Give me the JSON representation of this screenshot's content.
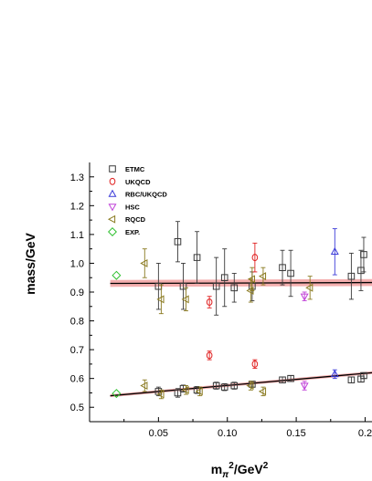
{
  "chart_data": {
    "type": "scatter",
    "title": "",
    "xlabel": "m_π²/GeV²",
    "ylabel": "mass/GeV",
    "xlim": [
      0.0,
      0.205
    ],
    "ylim": [
      0.45,
      1.35
    ],
    "x_ticks": [
      0.05,
      0.1,
      0.15,
      0.2
    ],
    "x_tick_labels": [
      "0.05",
      "0.10",
      "0.15",
      "0.2"
    ],
    "y_ticks": [
      0.5,
      0.6,
      0.7,
      0.8,
      0.9,
      1.0,
      1.1,
      1.2,
      1.3
    ],
    "y_tick_labels": [
      "0.5",
      "0.6",
      "0.7",
      "0.8",
      "0.9",
      "1.0",
      "1.1",
      "1.2",
      "1.3"
    ],
    "grid": false,
    "legend_position": "top-left",
    "series": [
      {
        "name": "ETMC",
        "marker": "square",
        "color": "#3a3a3a",
        "points": [
          {
            "x": 0.05,
            "y": 0.92,
            "err": 0.08
          },
          {
            "x": 0.064,
            "y": 1.075,
            "err": 0.07
          },
          {
            "x": 0.068,
            "y": 0.92,
            "err": 0.08
          },
          {
            "x": 0.078,
            "y": 1.02,
            "err": 0.09
          },
          {
            "x": 0.092,
            "y": 0.92,
            "err": 0.1
          },
          {
            "x": 0.098,
            "y": 0.95,
            "err": 0.1
          },
          {
            "x": 0.105,
            "y": 0.915,
            "err": 0.05
          },
          {
            "x": 0.118,
            "y": 0.92,
            "err": 0.05
          },
          {
            "x": 0.14,
            "y": 0.985,
            "err": 0.06
          },
          {
            "x": 0.146,
            "y": 0.965,
            "err": 0.08
          },
          {
            "x": 0.19,
            "y": 0.955,
            "err": 0.08
          },
          {
            "x": 0.197,
            "y": 0.975,
            "err": 0.07
          },
          {
            "x": 0.199,
            "y": 1.03,
            "err": 0.06
          },
          {
            "x": 0.05,
            "y": 0.555,
            "err": 0.015
          },
          {
            "x": 0.064,
            "y": 0.55,
            "err": 0.015
          },
          {
            "x": 0.068,
            "y": 0.565,
            "err": 0.012
          },
          {
            "x": 0.078,
            "y": 0.56,
            "err": 0.012
          },
          {
            "x": 0.092,
            "y": 0.575,
            "err": 0.012
          },
          {
            "x": 0.098,
            "y": 0.57,
            "err": 0.012
          },
          {
            "x": 0.105,
            "y": 0.575,
            "err": 0.012
          },
          {
            "x": 0.118,
            "y": 0.58,
            "err": 0.01
          },
          {
            "x": 0.14,
            "y": 0.595,
            "err": 0.01
          },
          {
            "x": 0.146,
            "y": 0.6,
            "err": 0.01
          },
          {
            "x": 0.19,
            "y": 0.595,
            "err": 0.01
          },
          {
            "x": 0.197,
            "y": 0.598,
            "err": 0.01
          },
          {
            "x": 0.199,
            "y": 0.61,
            "err": 0.01
          }
        ]
      },
      {
        "name": "UKQCD",
        "marker": "circle",
        "color": "#e02020",
        "points": [
          {
            "x": 0.087,
            "y": 0.865,
            "err": 0.02
          },
          {
            "x": 0.12,
            "y": 1.02,
            "err": 0.05
          },
          {
            "x": 0.087,
            "y": 0.68,
            "err": 0.015
          },
          {
            "x": 0.12,
            "y": 0.65,
            "err": 0.015
          }
        ]
      },
      {
        "name": "RBC/UKQCD",
        "marker": "triangle-up",
        "color": "#3a3ad8",
        "points": [
          {
            "x": 0.178,
            "y": 1.04,
            "err": 0.08
          },
          {
            "x": 0.178,
            "y": 0.615,
            "err": 0.015
          }
        ]
      },
      {
        "name": "HSC",
        "marker": "triangle-down",
        "color": "#c040d8",
        "points": [
          {
            "x": 0.156,
            "y": 0.885,
            "err": 0.015
          },
          {
            "x": 0.156,
            "y": 0.575,
            "err": 0.015
          }
        ]
      },
      {
        "name": "RQCD",
        "marker": "triangle-left",
        "color": "#8a7a20",
        "points": [
          {
            "x": 0.04,
            "y": 1.0,
            "err": 0.05
          },
          {
            "x": 0.052,
            "y": 0.875,
            "err": 0.05
          },
          {
            "x": 0.07,
            "y": 0.875,
            "err": 0.04
          },
          {
            "x": 0.117,
            "y": 0.905,
            "err": 0.04
          },
          {
            "x": 0.118,
            "y": 0.945,
            "err": 0.04
          },
          {
            "x": 0.126,
            "y": 0.955,
            "err": 0.03
          },
          {
            "x": 0.16,
            "y": 0.915,
            "err": 0.04
          },
          {
            "x": 0.04,
            "y": 0.575,
            "err": 0.02
          },
          {
            "x": 0.052,
            "y": 0.545,
            "err": 0.015
          },
          {
            "x": 0.07,
            "y": 0.56,
            "err": 0.015
          },
          {
            "x": 0.08,
            "y": 0.555,
            "err": 0.015
          },
          {
            "x": 0.117,
            "y": 0.575,
            "err": 0.015
          },
          {
            "x": 0.126,
            "y": 0.555,
            "err": 0.015
          }
        ]
      },
      {
        "name": "EXP.",
        "marker": "diamond",
        "color": "#30c030",
        "points": [
          {
            "x": 0.0195,
            "y": 0.958,
            "err": 0.0
          },
          {
            "x": 0.0195,
            "y": 0.548,
            "err": 0.0
          }
        ]
      }
    ],
    "fit_bands": [
      {
        "x": [
          0.015,
          0.205
        ],
        "y": [
          0.93,
          0.933
        ],
        "half_width": 0.012
      },
      {
        "x": [
          0.015,
          0.205
        ],
        "y": [
          0.54,
          0.62
        ],
        "half_width": 0.005
      }
    ]
  }
}
